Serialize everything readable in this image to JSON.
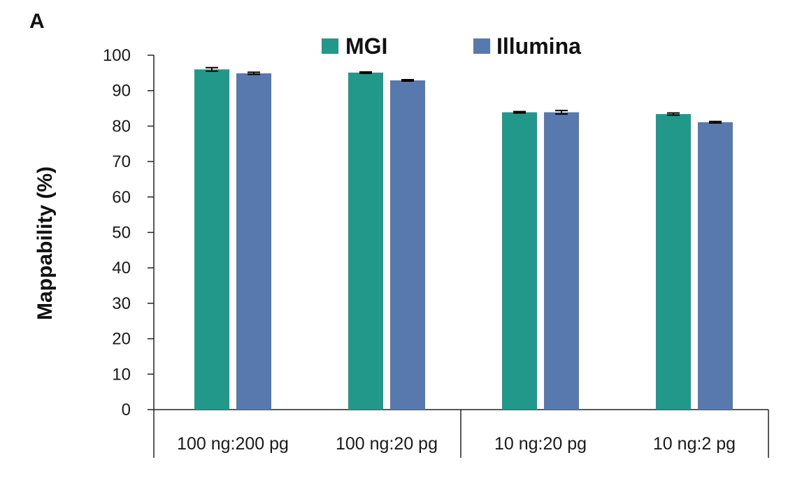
{
  "panel_label": "A",
  "chart_data": {
    "type": "bar",
    "title": "",
    "xlabel": "",
    "ylabel": "Mappability (%)",
    "ylim": [
      0,
      100
    ],
    "yticks": [
      0,
      10,
      20,
      30,
      40,
      50,
      60,
      70,
      80,
      90,
      100
    ],
    "categories": [
      "100 ng:200 pg",
      "100 ng:20 pg",
      "10 ng:20 pg",
      "10 ng:2 pg"
    ],
    "series": [
      {
        "name": "MGI",
        "color": "#21988a",
        "values": [
          96.0,
          95.1,
          83.9,
          83.4
        ],
        "errors": [
          0.5,
          0.2,
          0.2,
          0.3
        ]
      },
      {
        "name": "Illumina",
        "color": "#5879ad",
        "values": [
          94.9,
          92.9,
          83.9,
          81.1
        ],
        "errors": [
          0.3,
          0.2,
          0.5,
          0.2
        ]
      }
    ],
    "legend_position": "top-center",
    "grid": false
  }
}
